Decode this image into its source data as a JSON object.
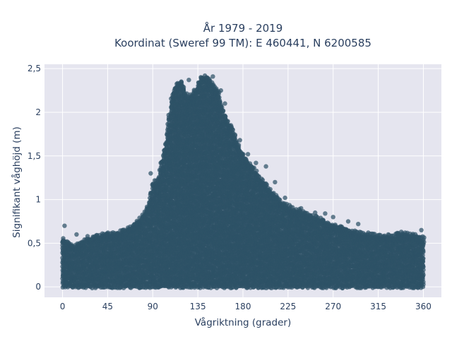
{
  "chart_data": {
    "type": "scatter",
    "title_lines": [
      "År 1979 - 2019",
      "Koordinat (Sweref 99 TM): E 460441, N 6200585"
    ],
    "xlabel": "Vågriktning (grader)",
    "ylabel": "Signifikant våghöjd (m)",
    "xlim": [
      -18,
      378
    ],
    "ylim": [
      -0.12,
      2.55
    ],
    "x_ticks": [
      {
        "value": 0,
        "label": "0"
      },
      {
        "value": 45,
        "label": "45"
      },
      {
        "value": 90,
        "label": "90"
      },
      {
        "value": 135,
        "label": "135"
      },
      {
        "value": 180,
        "label": "180"
      },
      {
        "value": 225,
        "label": "225"
      },
      {
        "value": 270,
        "label": "270"
      },
      {
        "value": 315,
        "label": "315"
      },
      {
        "value": 360,
        "label": "360"
      }
    ],
    "y_ticks": [
      {
        "value": 0,
        "label": "0"
      },
      {
        "value": 0.5,
        "label": "0,5"
      },
      {
        "value": 1,
        "label": "1"
      },
      {
        "value": 1.5,
        "label": "1,5"
      },
      {
        "value": 2,
        "label": "2"
      },
      {
        "value": 2.5,
        "label": "2,5"
      }
    ],
    "grid": true,
    "marker_color": "#2e5266",
    "plot_background": "#e5e5ef",
    "upper_envelope": [
      [
        0,
        0.55
      ],
      [
        5,
        0.5
      ],
      [
        10,
        0.45
      ],
      [
        20,
        0.5
      ],
      [
        30,
        0.55
      ],
      [
        40,
        0.58
      ],
      [
        50,
        0.6
      ],
      [
        60,
        0.62
      ],
      [
        70,
        0.68
      ],
      [
        80,
        0.8
      ],
      [
        85,
        0.9
      ],
      [
        90,
        1.15
      ],
      [
        95,
        1.2
      ],
      [
        100,
        1.45
      ],
      [
        105,
        1.8
      ],
      [
        110,
        2.2
      ],
      [
        115,
        2.35
      ],
      [
        120,
        2.3
      ],
      [
        125,
        2.15
      ],
      [
        130,
        2.2
      ],
      [
        135,
        2.3
      ],
      [
        140,
        2.4
      ],
      [
        145,
        2.38
      ],
      [
        150,
        2.3
      ],
      [
        155,
        2.25
      ],
      [
        160,
        2.0
      ],
      [
        165,
        1.85
      ],
      [
        170,
        1.8
      ],
      [
        175,
        1.6
      ],
      [
        180,
        1.5
      ],
      [
        190,
        1.35
      ],
      [
        200,
        1.2
      ],
      [
        210,
        1.05
      ],
      [
        220,
        0.95
      ],
      [
        230,
        0.88
      ],
      [
        240,
        0.85
      ],
      [
        250,
        0.8
      ],
      [
        260,
        0.75
      ],
      [
        270,
        0.7
      ],
      [
        280,
        0.65
      ],
      [
        290,
        0.62
      ],
      [
        300,
        0.6
      ],
      [
        310,
        0.58
      ],
      [
        320,
        0.56
      ],
      [
        330,
        0.58
      ],
      [
        340,
        0.6
      ],
      [
        350,
        0.58
      ],
      [
        360,
        0.55
      ]
    ],
    "outliers": [
      [
        2,
        0.7
      ],
      [
        14,
        0.6
      ],
      [
        25,
        0.58
      ],
      [
        88,
        1.3
      ],
      [
        92,
        1.22
      ],
      [
        98,
        1.42
      ],
      [
        126,
        2.37
      ],
      [
        138,
        2.4
      ],
      [
        142,
        2.42
      ],
      [
        150,
        2.41
      ],
      [
        158,
        2.25
      ],
      [
        162,
        2.1
      ],
      [
        168,
        1.85
      ],
      [
        177,
        1.68
      ],
      [
        185,
        1.52
      ],
      [
        193,
        1.42
      ],
      [
        203,
        1.38
      ],
      [
        212,
        1.2
      ],
      [
        222,
        1.02
      ],
      [
        238,
        0.9
      ],
      [
        252,
        0.85
      ],
      [
        262,
        0.84
      ],
      [
        270,
        0.8
      ],
      [
        285,
        0.75
      ],
      [
        295,
        0.72
      ],
      [
        305,
        0.62
      ],
      [
        325,
        0.6
      ],
      [
        338,
        0.63
      ],
      [
        358,
        0.65
      ]
    ]
  }
}
